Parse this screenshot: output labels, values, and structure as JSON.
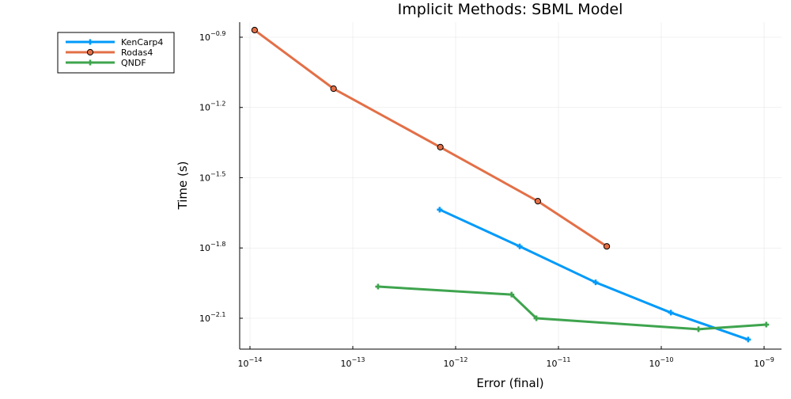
{
  "chart_data": {
    "type": "line",
    "title": "Implicit Methods: SBML Model",
    "xlabel": "Error (final)",
    "ylabel": "Time (s)",
    "xscale": "log10",
    "yscale": "log10",
    "xlim": [
      8e-15,
      1.6e-09
    ],
    "ylim": [
      0.0062,
      0.145
    ],
    "x_ticks": [
      {
        "base": "10",
        "exp": "−14",
        "value": 1e-14
      },
      {
        "base": "10",
        "exp": "−13",
        "value": 1e-13
      },
      {
        "base": "10",
        "exp": "−12",
        "value": 1e-12
      },
      {
        "base": "10",
        "exp": "−11",
        "value": 1e-11
      },
      {
        "base": "10",
        "exp": "−10",
        "value": 1e-10
      },
      {
        "base": "10",
        "exp": "−9",
        "value": 1e-09
      }
    ],
    "y_ticks": [
      {
        "base": "10",
        "exp": "−0.9",
        "value": 0.12589
      },
      {
        "base": "10",
        "exp": "−1.2",
        "value": 0.0631
      },
      {
        "base": "10",
        "exp": "−1.5",
        "value": 0.03162
      },
      {
        "base": "10",
        "exp": "−1.8",
        "value": 0.01585
      },
      {
        "base": "10",
        "exp": "−2.1",
        "value": 0.00794
      }
    ],
    "grid": true,
    "legend_position": "outer-top-left",
    "series": [
      {
        "name": "KenCarp4",
        "color": "#009AFA",
        "marker": "cross",
        "x": [
          7e-13,
          4.2e-12,
          2.3e-11,
          1.24e-10,
          7e-10
        ],
        "y": [
          0.0231,
          0.0161,
          0.0113,
          0.00839,
          0.00644
        ]
      },
      {
        "name": "Rodas4",
        "color": "#E36F47",
        "marker": "circle",
        "x": [
          1.11e-14,
          6.5e-14,
          7.1e-13,
          6.3e-12,
          2.95e-11
        ],
        "y": [
          0.135,
          0.0759,
          0.0427,
          0.0251,
          0.0161
        ]
      },
      {
        "name": "QNDF",
        "color": "#3EA44E",
        "marker": "cross",
        "x": [
          1.76e-13,
          3.5e-12,
          6.1e-12,
          2.3e-10,
          1.05e-09
        ],
        "y": [
          0.01084,
          0.01002,
          0.00794,
          0.00713,
          0.00746
        ]
      }
    ]
  }
}
